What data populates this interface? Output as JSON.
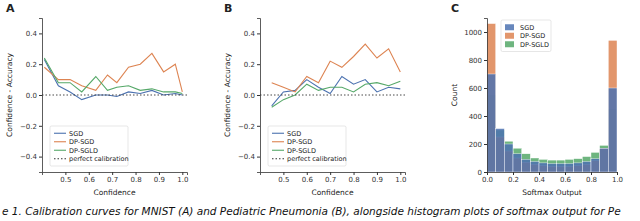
{
  "caption": "e 1. Calibration curves for MNIST (A) and Pediatric Pneumonia (B), alongside histogram plots of softmax output for Pe",
  "chart_data": [
    {
      "type": "line",
      "title": "A",
      "x_label": "Confidence",
      "y_label": "Confidence - Accuracy",
      "xlim": [
        0.4,
        1.02
      ],
      "ylim": [
        -0.5,
        0.5
      ],
      "xticks": [
        0.5,
        0.6,
        0.7,
        0.8,
        0.9,
        {
          "value": 1.0,
          "label": "1.0"
        }
      ],
      "yticks": [
        {
          "value": -0.4,
          "label": "−0.4"
        },
        {
          "value": -0.2,
          "label": "−0.2"
        },
        {
          "value": 0.0,
          "label": "0.0"
        },
        0.2,
        0.4
      ],
      "grid": false,
      "legend": "lower left",
      "series": [
        {
          "name": "SGD",
          "color": "#4c72b0",
          "line_style": "solid",
          "x": [
            0.41,
            0.47,
            0.52,
            0.57,
            0.63,
            0.68,
            0.72,
            0.77,
            0.82,
            0.87,
            0.92,
            0.97,
            1.0
          ],
          "values": [
            0.23,
            0.06,
            0.02,
            -0.03,
            0.0,
            0.0,
            -0.01,
            0.02,
            0.01,
            0.03,
            0.0,
            0.01,
            0.0
          ]
        },
        {
          "name": "DP-SGD",
          "color": "#dd8452",
          "line_style": "solid",
          "x": [
            0.41,
            0.47,
            0.52,
            0.57,
            0.63,
            0.68,
            0.72,
            0.77,
            0.82,
            0.87,
            0.92,
            0.97,
            1.0
          ],
          "values": [
            0.18,
            0.1,
            0.1,
            0.06,
            0.03,
            0.13,
            0.08,
            0.18,
            0.2,
            0.27,
            0.15,
            0.2,
            0.02
          ]
        },
        {
          "name": "DP-SGLD",
          "color": "#55a868",
          "line_style": "solid",
          "x": [
            0.41,
            0.47,
            0.52,
            0.57,
            0.63,
            0.68,
            0.72,
            0.77,
            0.82,
            0.87,
            0.92,
            0.97,
            1.0
          ],
          "values": [
            0.24,
            0.08,
            0.08,
            0.02,
            0.12,
            0.03,
            0.05,
            0.06,
            0.03,
            0.04,
            0.02,
            0.02,
            0.01
          ]
        },
        {
          "name": "perfect calibration",
          "color": "#333333",
          "line_style": "dotted",
          "x": [
            0.4,
            1.02
          ],
          "values": [
            0.0,
            0.0
          ]
        }
      ]
    },
    {
      "type": "line",
      "title": "B",
      "x_label": "Confidence",
      "y_label": "Confidence - Accuracy",
      "xlim": [
        0.4,
        1.02
      ],
      "ylim": [
        -0.5,
        0.5
      ],
      "xticks": [
        0.5,
        0.6,
        0.7,
        0.8,
        0.9,
        {
          "value": 1.0,
          "label": "1.0"
        }
      ],
      "yticks": [
        {
          "value": -0.4,
          "label": "−0.4"
        },
        {
          "value": -0.2,
          "label": "−0.2"
        },
        {
          "value": 0.0,
          "label": "0.0"
        },
        0.2,
        0.4
      ],
      "grid": false,
      "legend": "lower left",
      "series": [
        {
          "name": "SGD",
          "color": "#4c72b0",
          "line_style": "solid",
          "x": [
            0.45,
            0.5,
            0.55,
            0.6,
            0.65,
            0.7,
            0.75,
            0.8,
            0.85,
            0.9,
            0.95,
            1.0
          ],
          "values": [
            -0.07,
            0.02,
            0.03,
            0.1,
            0.05,
            0.01,
            0.12,
            0.07,
            0.1,
            0.02,
            0.05,
            0.04
          ]
        },
        {
          "name": "DP-SGD",
          "color": "#dd8452",
          "line_style": "solid",
          "x": [
            0.45,
            0.5,
            0.55,
            0.6,
            0.65,
            0.7,
            0.75,
            0.8,
            0.85,
            0.9,
            0.95,
            1.0
          ],
          "values": [
            0.08,
            0.05,
            0.02,
            0.12,
            0.08,
            0.22,
            0.18,
            0.25,
            0.33,
            0.24,
            0.3,
            0.15
          ]
        },
        {
          "name": "DP-SGLD",
          "color": "#55a868",
          "line_style": "solid",
          "x": [
            0.45,
            0.5,
            0.55,
            0.6,
            0.65,
            0.7,
            0.75,
            0.8,
            0.85,
            0.9,
            0.95,
            1.0
          ],
          "values": [
            -0.08,
            -0.03,
            0.0,
            0.07,
            0.03,
            0.05,
            0.05,
            0.02,
            0.07,
            0.08,
            0.06,
            0.09
          ]
        },
        {
          "name": "perfect calibration",
          "color": "#333333",
          "line_style": "dotted",
          "x": [
            0.4,
            1.02
          ],
          "values": [
            0.0,
            0.0
          ]
        }
      ]
    },
    {
      "type": "histogram",
      "title": "C",
      "x_label": "Softmax Output",
      "y_label": "Count",
      "xlim": [
        0.0,
        1.0
      ],
      "ylim": [
        0,
        1100
      ],
      "xticks": [
        {
          "value": 0.0,
          "label": "0.0"
        },
        0.2,
        0.4,
        0.6,
        0.8,
        {
          "value": 1.0,
          "label": "1.0"
        }
      ],
      "yticks": [
        0,
        200,
        400,
        600,
        800,
        1000
      ],
      "grid": false,
      "legend": "upper center",
      "bins": [
        0.0,
        0.0667,
        0.1333,
        0.2,
        0.2667,
        0.3333,
        0.4,
        0.4667,
        0.5333,
        0.6,
        0.6667,
        0.7333,
        0.8,
        0.8667,
        0.9333,
        1.0
      ],
      "series": [
        {
          "name": "SGD",
          "color": "#4c72b0",
          "values": [
            700,
            310,
            200,
            130,
            90,
            75,
            65,
            60,
            60,
            60,
            65,
            75,
            95,
            170,
            600
          ]
        },
        {
          "name": "DP-SGD",
          "color": "#dd8452",
          "values": [
            1060,
            250,
            150,
            100,
            70,
            55,
            45,
            40,
            40,
            40,
            45,
            55,
            80,
            170,
            940
          ]
        },
        {
          "name": "DP-SGLD",
          "color": "#55a868",
          "values": [
            550,
            300,
            220,
            170,
            130,
            100,
            90,
            85,
            85,
            90,
            95,
            110,
            140,
            190,
            450
          ]
        }
      ]
    }
  ]
}
